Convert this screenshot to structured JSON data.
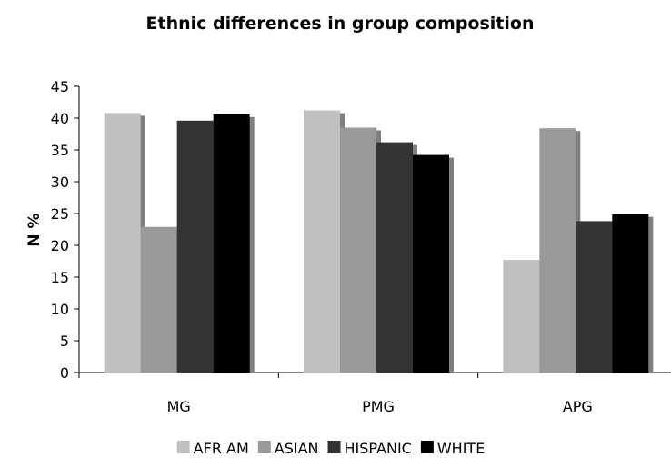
{
  "chart_data": {
    "type": "bar",
    "title": "Ethnic differences in group composition",
    "xlabel": "",
    "ylabel": "N %",
    "ylim": [
      0,
      45
    ],
    "yticks": [
      0,
      5,
      10,
      15,
      20,
      25,
      30,
      35,
      40,
      45
    ],
    "categories": [
      "MG",
      "PMG",
      "APG"
    ],
    "series": [
      {
        "name": "AFR AM",
        "values": [
          40.8,
          41.2,
          17.7
        ],
        "color": "#c0c0c0"
      },
      {
        "name": "ASIAN",
        "values": [
          22.9,
          38.5,
          38.4
        ],
        "color": "#999999"
      },
      {
        "name": "HISPANIC",
        "values": [
          39.6,
          36.2,
          23.8
        ],
        "color": "#333333"
      },
      {
        "name": "WHITE",
        "values": [
          40.6,
          34.2,
          24.9
        ],
        "color": "#000000"
      }
    ],
    "grid": false,
    "legend": "bottom",
    "style": "3d-shadow"
  }
}
